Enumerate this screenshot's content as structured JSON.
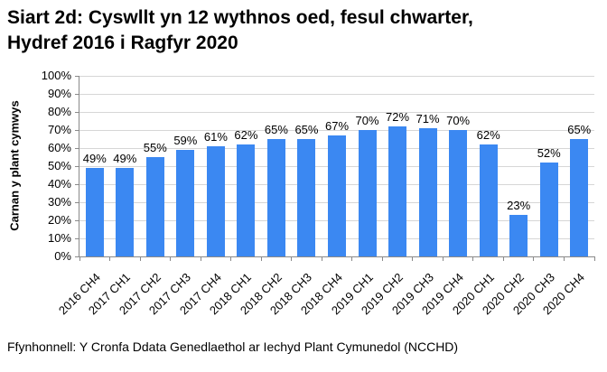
{
  "title": {
    "line1": "Siart 2d: Cyswllt yn 12 wythnos oed, fesul chwarter,",
    "line2": "Hydref 2016 i Ragfyr 2020"
  },
  "chart_data": {
    "type": "bar",
    "title": "Siart 2d: Cyswllt yn 12 wythnos oed, fesul chwarter, Hydref 2016 i Ragfyr 2020",
    "categories": [
      "2016 CH4",
      "2017 CH1",
      "2017 CH2",
      "2017 CH3",
      "2017 CH4",
      "2018 CH1",
      "2018 CH2",
      "2018 CH3",
      "2018 CH4",
      "2019 CH1",
      "2019 CH2",
      "2019 CH3",
      "2019 CH4",
      "2020 CH1",
      "2020 CH2",
      "2020 CH3",
      "2020 CH4"
    ],
    "values": [
      49,
      49,
      55,
      59,
      61,
      62,
      65,
      65,
      67,
      70,
      72,
      71,
      70,
      62,
      23,
      52,
      65
    ],
    "value_labels": [
      "49%",
      "49%",
      "55%",
      "59%",
      "61%",
      "62%",
      "65%",
      "65%",
      "67%",
      "70%",
      "72%",
      "71%",
      "70%",
      "62%",
      "23%",
      "52%",
      "65%"
    ],
    "xlabel": "",
    "ylabel": "Carnan y plant cymwys",
    "ylim": [
      0,
      100
    ],
    "ytick_step": 10,
    "ytick_suffix": "%",
    "grid": true,
    "legend": "none"
  },
  "colors": {
    "bar": "#3b88f2",
    "grid": "#d6d6d6",
    "axis": "#898989",
    "text": "#000000"
  },
  "source": "Ffynhonnell: Y Cronfa Ddata Genedlaethol ar Iechyd Plant Cymunedol (NCCHD)"
}
